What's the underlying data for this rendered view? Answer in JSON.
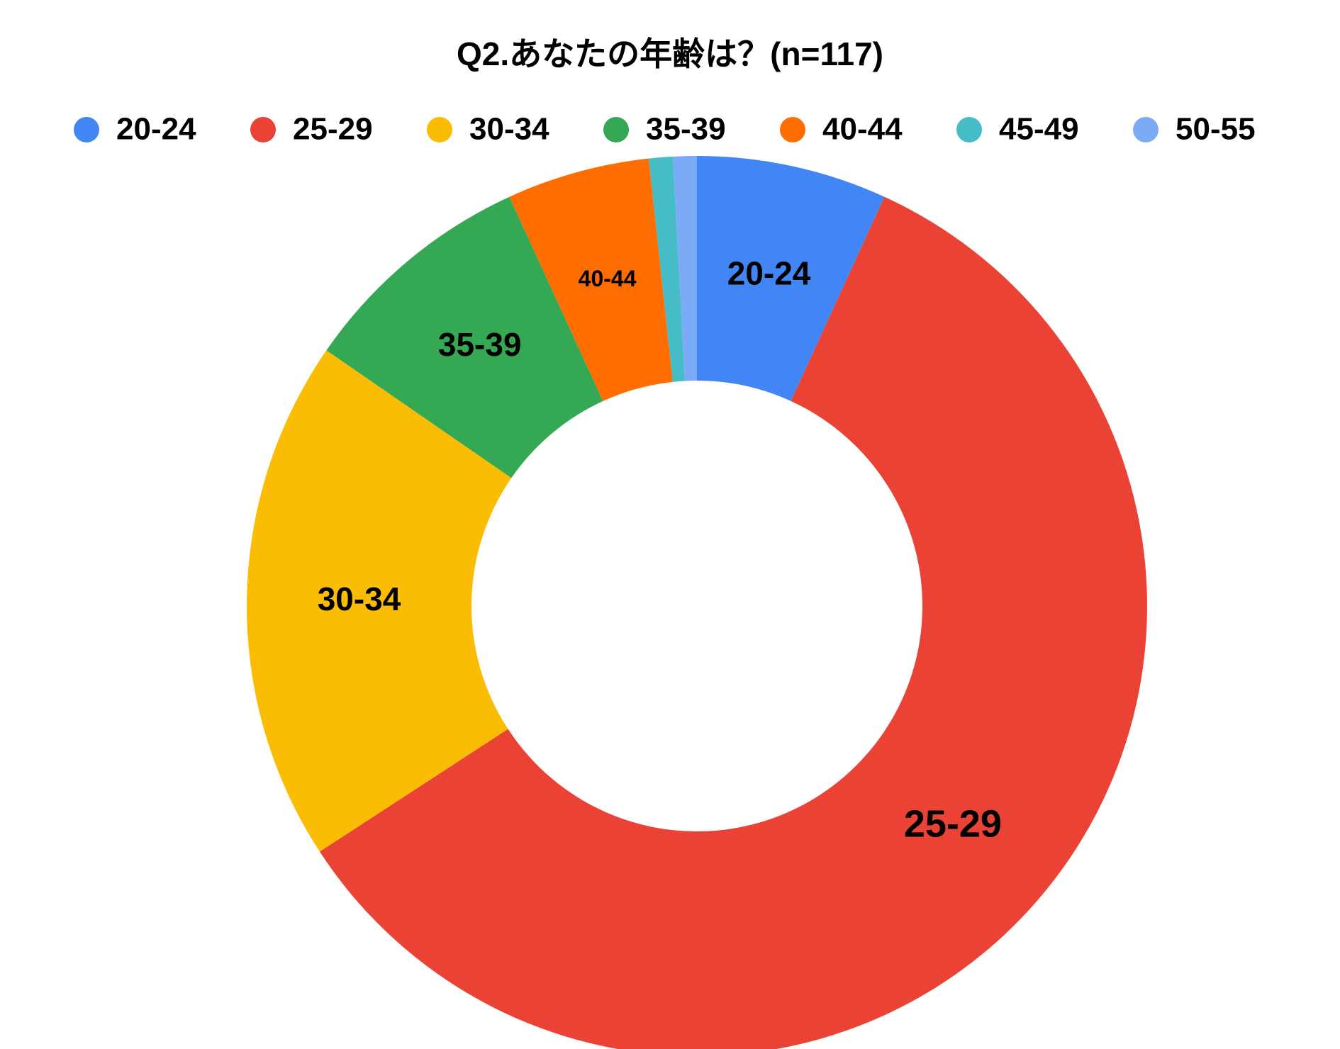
{
  "chart_data": {
    "type": "donut",
    "title": "Q2.あなたの年齢は？(n=117)",
    "categories": [
      "20-24",
      "25-29",
      "30-34",
      "35-39",
      "40-44",
      "45-49",
      "50-55"
    ],
    "values": [
      8,
      69,
      22,
      10,
      6,
      1,
      1
    ],
    "colors": [
      "#4285f4",
      "#ea4335",
      "#fbbc04",
      "#34a853",
      "#ff6d01",
      "#46bdc6",
      "#7baaf7"
    ],
    "legend": "top"
  }
}
